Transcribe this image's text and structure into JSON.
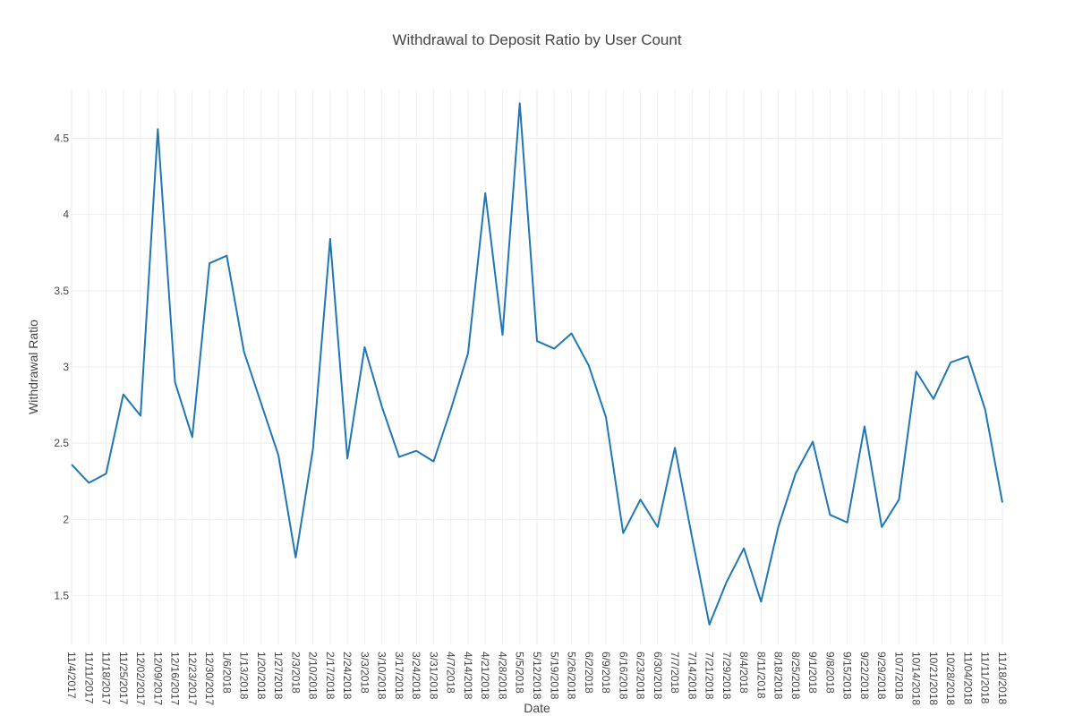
{
  "chart_data": {
    "type": "line",
    "title": "Withdrawal to Deposit Ratio by User Count",
    "xlabel": "Date",
    "ylabel": "Withdrawal Ratio",
    "ylim": [
      1.18,
      4.82
    ],
    "yticks": [
      1.5,
      2,
      2.5,
      3,
      3.5,
      4,
      4.5
    ],
    "ytick_labels": [
      "1.5",
      "2",
      "2.5",
      "3",
      "3.5",
      "4",
      "4.5"
    ],
    "grid": true,
    "line_color": "#1f77b4",
    "categories": [
      "11/4/2017",
      "11/11/2017",
      "11/18/2017",
      "11/25/2017",
      "12/02/2017",
      "12/09/2017",
      "12/16/2017",
      "12/23/2017",
      "12/30/2017",
      "1/6/2018",
      "1/13/2018",
      "1/20/2018",
      "1/27/2018",
      "2/3/2018",
      "2/10/2018",
      "2/17/2018",
      "2/24/2018",
      "3/3/2018",
      "3/10/2018",
      "3/17/2018",
      "3/24/2018",
      "3/31/2018",
      "4/7/2018",
      "4/14/2018",
      "4/21/2018",
      "4/28/2018",
      "5/5/2018",
      "5/12/2018",
      "5/19/2018",
      "5/26/2018",
      "6/2/2018",
      "6/9/2018",
      "6/16/2018",
      "6/23/2018",
      "6/30/2018",
      "7/7/2018",
      "7/14/2018",
      "7/21/2018",
      "7/29/2018",
      "8/4/2018",
      "8/11/2018",
      "8/18/2018",
      "8/25/2018",
      "9/1/2018",
      "9/8/2018",
      "9/15/2018",
      "9/22/2018",
      "9/29/2018",
      "10/7/2018",
      "10/14/2018",
      "10/21/2018",
      "10/28/2018",
      "11/04/2018",
      "11/11/2018",
      "11/18/2018"
    ],
    "values": [
      2.36,
      2.24,
      2.3,
      2.82,
      2.68,
      4.56,
      2.9,
      2.54,
      3.68,
      3.73,
      3.1,
      2.76,
      2.42,
      1.75,
      2.46,
      3.84,
      2.4,
      3.13,
      2.74,
      2.41,
      2.45,
      2.38,
      2.72,
      3.09,
      4.14,
      3.21,
      4.73,
      3.17,
      3.12,
      3.22,
      3.01,
      2.67,
      1.91,
      2.13,
      1.95,
      2.47,
      1.88,
      1.31,
      1.59,
      1.81,
      1.46,
      1.95,
      2.3,
      2.51,
      2.03,
      1.98,
      2.61,
      1.95,
      2.13,
      2.97,
      2.79,
      3.03,
      3.07,
      2.72,
      2.11
    ]
  }
}
